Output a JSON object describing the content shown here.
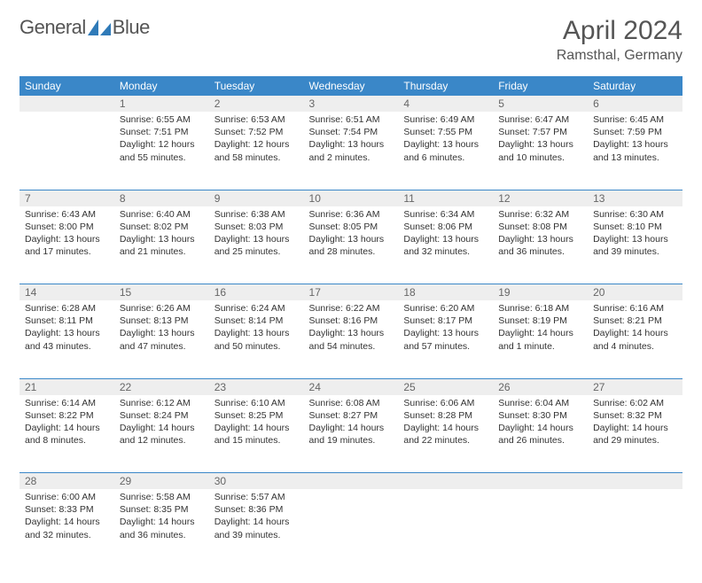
{
  "brand": {
    "name_general": "General",
    "name_blue": "Blue"
  },
  "title": "April 2024",
  "location": "Ramsthal, Germany",
  "colors": {
    "header_bg": "#3a87c8",
    "header_text": "#ffffff",
    "daynum_bg": "#eeeeee",
    "border": "#3a87c8",
    "text": "#333333",
    "title_text": "#555555",
    "logo_blue": "#2f7ab8"
  },
  "fonts": {
    "body_size": 10.5,
    "header_size": 12,
    "title_size": 30,
    "location_size": 16
  },
  "columns": [
    "Sunday",
    "Monday",
    "Tuesday",
    "Wednesday",
    "Thursday",
    "Friday",
    "Saturday"
  ],
  "weeks": [
    [
      {
        "day": "",
        "sunrise": "",
        "sunset": "",
        "daylight": ""
      },
      {
        "day": "1",
        "sunrise": "Sunrise: 6:55 AM",
        "sunset": "Sunset: 7:51 PM",
        "daylight": "Daylight: 12 hours and 55 minutes."
      },
      {
        "day": "2",
        "sunrise": "Sunrise: 6:53 AM",
        "sunset": "Sunset: 7:52 PM",
        "daylight": "Daylight: 12 hours and 58 minutes."
      },
      {
        "day": "3",
        "sunrise": "Sunrise: 6:51 AM",
        "sunset": "Sunset: 7:54 PM",
        "daylight": "Daylight: 13 hours and 2 minutes."
      },
      {
        "day": "4",
        "sunrise": "Sunrise: 6:49 AM",
        "sunset": "Sunset: 7:55 PM",
        "daylight": "Daylight: 13 hours and 6 minutes."
      },
      {
        "day": "5",
        "sunrise": "Sunrise: 6:47 AM",
        "sunset": "Sunset: 7:57 PM",
        "daylight": "Daylight: 13 hours and 10 minutes."
      },
      {
        "day": "6",
        "sunrise": "Sunrise: 6:45 AM",
        "sunset": "Sunset: 7:59 PM",
        "daylight": "Daylight: 13 hours and 13 minutes."
      }
    ],
    [
      {
        "day": "7",
        "sunrise": "Sunrise: 6:43 AM",
        "sunset": "Sunset: 8:00 PM",
        "daylight": "Daylight: 13 hours and 17 minutes."
      },
      {
        "day": "8",
        "sunrise": "Sunrise: 6:40 AM",
        "sunset": "Sunset: 8:02 PM",
        "daylight": "Daylight: 13 hours and 21 minutes."
      },
      {
        "day": "9",
        "sunrise": "Sunrise: 6:38 AM",
        "sunset": "Sunset: 8:03 PM",
        "daylight": "Daylight: 13 hours and 25 minutes."
      },
      {
        "day": "10",
        "sunrise": "Sunrise: 6:36 AM",
        "sunset": "Sunset: 8:05 PM",
        "daylight": "Daylight: 13 hours and 28 minutes."
      },
      {
        "day": "11",
        "sunrise": "Sunrise: 6:34 AM",
        "sunset": "Sunset: 8:06 PM",
        "daylight": "Daylight: 13 hours and 32 minutes."
      },
      {
        "day": "12",
        "sunrise": "Sunrise: 6:32 AM",
        "sunset": "Sunset: 8:08 PM",
        "daylight": "Daylight: 13 hours and 36 minutes."
      },
      {
        "day": "13",
        "sunrise": "Sunrise: 6:30 AM",
        "sunset": "Sunset: 8:10 PM",
        "daylight": "Daylight: 13 hours and 39 minutes."
      }
    ],
    [
      {
        "day": "14",
        "sunrise": "Sunrise: 6:28 AM",
        "sunset": "Sunset: 8:11 PM",
        "daylight": "Daylight: 13 hours and 43 minutes."
      },
      {
        "day": "15",
        "sunrise": "Sunrise: 6:26 AM",
        "sunset": "Sunset: 8:13 PM",
        "daylight": "Daylight: 13 hours and 47 minutes."
      },
      {
        "day": "16",
        "sunrise": "Sunrise: 6:24 AM",
        "sunset": "Sunset: 8:14 PM",
        "daylight": "Daylight: 13 hours and 50 minutes."
      },
      {
        "day": "17",
        "sunrise": "Sunrise: 6:22 AM",
        "sunset": "Sunset: 8:16 PM",
        "daylight": "Daylight: 13 hours and 54 minutes."
      },
      {
        "day": "18",
        "sunrise": "Sunrise: 6:20 AM",
        "sunset": "Sunset: 8:17 PM",
        "daylight": "Daylight: 13 hours and 57 minutes."
      },
      {
        "day": "19",
        "sunrise": "Sunrise: 6:18 AM",
        "sunset": "Sunset: 8:19 PM",
        "daylight": "Daylight: 14 hours and 1 minute."
      },
      {
        "day": "20",
        "sunrise": "Sunrise: 6:16 AM",
        "sunset": "Sunset: 8:21 PM",
        "daylight": "Daylight: 14 hours and 4 minutes."
      }
    ],
    [
      {
        "day": "21",
        "sunrise": "Sunrise: 6:14 AM",
        "sunset": "Sunset: 8:22 PM",
        "daylight": "Daylight: 14 hours and 8 minutes."
      },
      {
        "day": "22",
        "sunrise": "Sunrise: 6:12 AM",
        "sunset": "Sunset: 8:24 PM",
        "daylight": "Daylight: 14 hours and 12 minutes."
      },
      {
        "day": "23",
        "sunrise": "Sunrise: 6:10 AM",
        "sunset": "Sunset: 8:25 PM",
        "daylight": "Daylight: 14 hours and 15 minutes."
      },
      {
        "day": "24",
        "sunrise": "Sunrise: 6:08 AM",
        "sunset": "Sunset: 8:27 PM",
        "daylight": "Daylight: 14 hours and 19 minutes."
      },
      {
        "day": "25",
        "sunrise": "Sunrise: 6:06 AM",
        "sunset": "Sunset: 8:28 PM",
        "daylight": "Daylight: 14 hours and 22 minutes."
      },
      {
        "day": "26",
        "sunrise": "Sunrise: 6:04 AM",
        "sunset": "Sunset: 8:30 PM",
        "daylight": "Daylight: 14 hours and 26 minutes."
      },
      {
        "day": "27",
        "sunrise": "Sunrise: 6:02 AM",
        "sunset": "Sunset: 8:32 PM",
        "daylight": "Daylight: 14 hours and 29 minutes."
      }
    ],
    [
      {
        "day": "28",
        "sunrise": "Sunrise: 6:00 AM",
        "sunset": "Sunset: 8:33 PM",
        "daylight": "Daylight: 14 hours and 32 minutes."
      },
      {
        "day": "29",
        "sunrise": "Sunrise: 5:58 AM",
        "sunset": "Sunset: 8:35 PM",
        "daylight": "Daylight: 14 hours and 36 minutes."
      },
      {
        "day": "30",
        "sunrise": "Sunrise: 5:57 AM",
        "sunset": "Sunset: 8:36 PM",
        "daylight": "Daylight: 14 hours and 39 minutes."
      },
      {
        "day": "",
        "sunrise": "",
        "sunset": "",
        "daylight": ""
      },
      {
        "day": "",
        "sunrise": "",
        "sunset": "",
        "daylight": ""
      },
      {
        "day": "",
        "sunrise": "",
        "sunset": "",
        "daylight": ""
      },
      {
        "day": "",
        "sunrise": "",
        "sunset": "",
        "daylight": ""
      }
    ]
  ]
}
